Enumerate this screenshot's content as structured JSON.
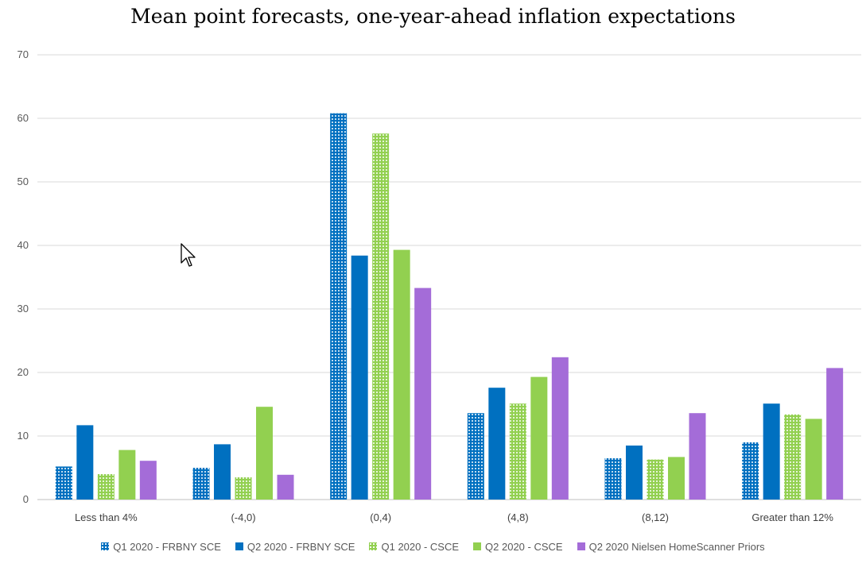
{
  "chart_data": {
    "type": "bar",
    "title": "Mean point forecasts, one-year-ahead inflation expectations",
    "xlabel": "",
    "ylabel": "",
    "ylim": [
      0,
      70
    ],
    "yticks": [
      0,
      10,
      20,
      30,
      40,
      50,
      60,
      70
    ],
    "categories": [
      "Less than 4%",
      "(-4,0)",
      "(0,4)",
      "(4,8)",
      "(8,12)",
      "Greater than 12%"
    ],
    "series": [
      {
        "name": "Q1 2020 - FRBNY SCE",
        "color": "#0070c0",
        "pattern": "dotted",
        "values": [
          5.2,
          5.0,
          60.8,
          13.6,
          6.5,
          9.0
        ]
      },
      {
        "name": "Q2 2020 - FRBNY SCE",
        "color": "#0070c0",
        "pattern": "solid",
        "values": [
          11.7,
          8.7,
          38.4,
          17.6,
          8.5,
          15.1
        ]
      },
      {
        "name": "Q1 2020 - CSCE",
        "color": "#92d050",
        "pattern": "dotted",
        "values": [
          4.0,
          3.5,
          57.6,
          15.1,
          6.3,
          13.4
        ]
      },
      {
        "name": "Q2 2020 - CSCE",
        "color": "#92d050",
        "pattern": "solid",
        "values": [
          7.8,
          14.6,
          39.3,
          19.3,
          6.7,
          12.7
        ]
      },
      {
        "name": "Q2 2020 Nielsen HomeScanner Priors",
        "color": "#a46cd8",
        "pattern": "solid",
        "values": [
          6.1,
          3.9,
          33.3,
          22.4,
          13.6,
          20.7
        ]
      }
    ],
    "grid": true,
    "legend_position": "bottom"
  }
}
